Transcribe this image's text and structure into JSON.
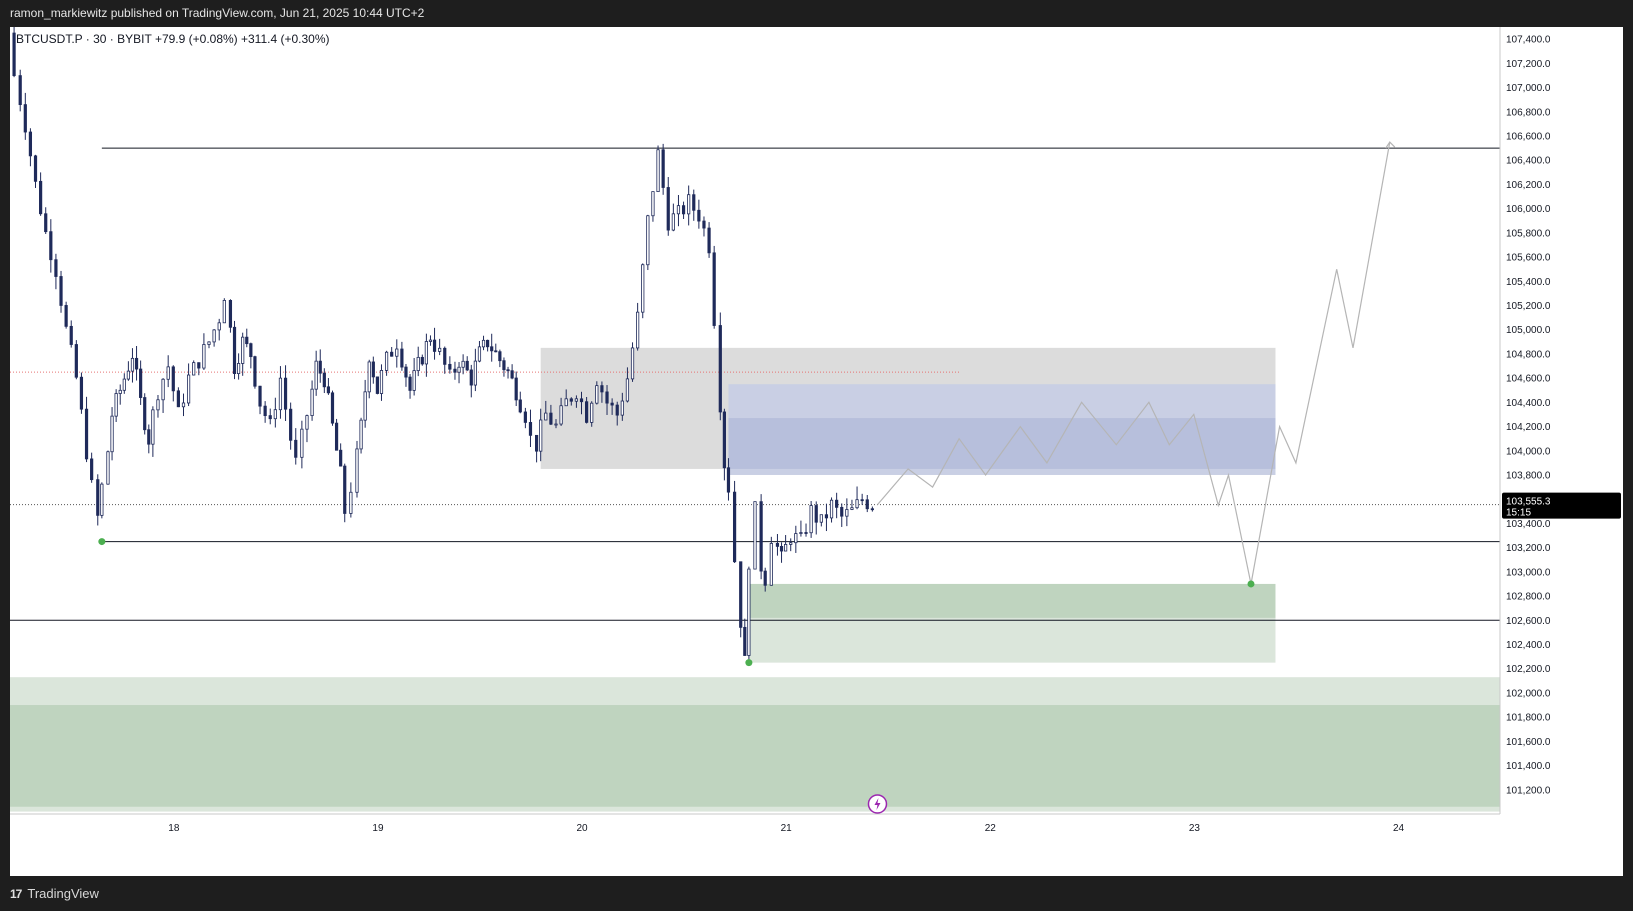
{
  "header": {
    "published_by": "ramon_markiewitz published on TradingView.com, Jun 21, 2025 10:44 UTC+2"
  },
  "legend": {
    "symbol_line": "BTCUSDT.P · 30 · BYBIT",
    "change_1": "+79.9 (+0.08%)",
    "change_2": "+311.4 (+0.30%)"
  },
  "price_label": {
    "price": "103,555.3",
    "countdown": "15:15"
  },
  "footer": {
    "brand": "TradingView"
  },
  "colors": {
    "candle": "#1f2a5a",
    "gray_zone": "#dcdcdc",
    "blue_zone": "#b7bfdc",
    "green_dark": "#bfd4bf",
    "green_light": "#dbe6db",
    "projection": "#b5b5b5",
    "marker": "#4caf50",
    "red_dotted": "#e57373"
  },
  "chart_data": {
    "type": "candlestick",
    "symbol": "BTCUSDT.P",
    "timeframe": "30",
    "exchange": "BYBIT",
    "x_ticks": [
      "18",
      "19",
      "20",
      "21",
      "22",
      "23",
      "24"
    ],
    "x_range_days": [
      17.2,
      24.5
    ],
    "y_range": [
      101000,
      107500
    ],
    "y_ticks": [
      101200,
      101400,
      101600,
      101800,
      102000,
      102200,
      102400,
      102600,
      102800,
      103000,
      103200,
      103400,
      103600,
      103800,
      104000,
      104200,
      104400,
      104600,
      104800,
      105000,
      105200,
      105400,
      105600,
      105800,
      106000,
      106200,
      106400,
      106600,
      106800,
      107000,
      107200,
      107400
    ],
    "current_price": 103555.3,
    "price_path": [
      [
        17.22,
        107450
      ],
      [
        17.25,
        107100
      ],
      [
        17.3,
        106700
      ],
      [
        17.35,
        106200
      ],
      [
        17.4,
        105800
      ],
      [
        17.45,
        105500
      ],
      [
        17.5,
        105000
      ],
      [
        17.55,
        104600
      ],
      [
        17.6,
        104000
      ],
      [
        17.63,
        103700
      ],
      [
        17.65,
        103450
      ],
      [
        17.68,
        103700
      ],
      [
        17.72,
        104300
      ],
      [
        17.78,
        104600
      ],
      [
        17.82,
        104800
      ],
      [
        17.86,
        104400
      ],
      [
        17.9,
        104100
      ],
      [
        17.95,
        104500
      ],
      [
        18.0,
        104700
      ],
      [
        18.05,
        104300
      ],
      [
        18.1,
        104600
      ],
      [
        18.15,
        104750
      ],
      [
        18.2,
        104900
      ],
      [
        18.25,
        105100
      ],
      [
        18.28,
        105300
      ],
      [
        18.32,
        104700
      ],
      [
        18.36,
        104900
      ],
      [
        18.4,
        104800
      ],
      [
        18.45,
        104400
      ],
      [
        18.5,
        104200
      ],
      [
        18.55,
        104600
      ],
      [
        18.6,
        104100
      ],
      [
        18.63,
        103900
      ],
      [
        18.68,
        104300
      ],
      [
        18.72,
        104700
      ],
      [
        18.76,
        104600
      ],
      [
        18.8,
        104200
      ],
      [
        18.84,
        103800
      ],
      [
        18.87,
        103500
      ],
      [
        18.9,
        103700
      ],
      [
        18.94,
        104200
      ],
      [
        18.98,
        104800
      ],
      [
        19.02,
        104500
      ],
      [
        19.07,
        104750
      ],
      [
        19.12,
        104900
      ],
      [
        19.18,
        104500
      ],
      [
        19.22,
        104700
      ],
      [
        19.28,
        104950
      ],
      [
        19.33,
        104800
      ],
      [
        19.38,
        104600
      ],
      [
        19.42,
        104750
      ],
      [
        19.48,
        104600
      ],
      [
        19.52,
        104800
      ],
      [
        19.56,
        104900
      ],
      [
        19.62,
        104750
      ],
      [
        19.66,
        104650
      ],
      [
        19.7,
        104500
      ],
      [
        19.75,
        104300
      ],
      [
        19.78,
        104100
      ],
      [
        19.8,
        104050
      ],
      [
        19.85,
        104300
      ],
      [
        19.9,
        104200
      ],
      [
        19.95,
        104400
      ],
      [
        20.0,
        104500
      ],
      [
        20.05,
        104300
      ],
      [
        20.1,
        104600
      ],
      [
        20.15,
        104400
      ],
      [
        20.2,
        104300
      ],
      [
        20.25,
        104600
      ],
      [
        20.3,
        105100
      ],
      [
        20.35,
        105900
      ],
      [
        20.4,
        106450
      ],
      [
        20.45,
        105900
      ],
      [
        20.5,
        105950
      ],
      [
        20.55,
        106050
      ],
      [
        20.6,
        105950
      ],
      [
        20.65,
        105700
      ],
      [
        20.68,
        105100
      ],
      [
        20.7,
        104400
      ],
      [
        20.72,
        103900
      ],
      [
        20.75,
        103700
      ],
      [
        20.78,
        103100
      ],
      [
        20.8,
        102600
      ],
      [
        20.82,
        102250
      ],
      [
        20.85,
        103100
      ],
      [
        20.88,
        103500
      ],
      [
        20.9,
        103050
      ],
      [
        20.93,
        102950
      ],
      [
        20.96,
        103300
      ],
      [
        21.0,
        103100
      ],
      [
        21.05,
        103300
      ],
      [
        21.1,
        103250
      ],
      [
        21.15,
        103500
      ],
      [
        21.2,
        103400
      ],
      [
        21.25,
        103550
      ],
      [
        21.3,
        103450
      ],
      [
        21.35,
        103500
      ],
      [
        21.4,
        103600
      ],
      [
        21.45,
        103555
      ]
    ],
    "projection_path": [
      [
        21.45,
        103555
      ],
      [
        21.6,
        103850
      ],
      [
        21.72,
        103700
      ],
      [
        21.85,
        104100
      ],
      [
        21.98,
        103800
      ],
      [
        22.15,
        104200
      ],
      [
        22.28,
        103900
      ],
      [
        22.45,
        104400
      ],
      [
        22.62,
        104050
      ],
      [
        22.78,
        104400
      ],
      [
        22.88,
        104050
      ],
      [
        23.0,
        104300
      ],
      [
        23.12,
        103550
      ],
      [
        23.17,
        103800
      ],
      [
        23.28,
        102900
      ],
      [
        23.42,
        104200
      ],
      [
        23.5,
        103900
      ],
      [
        23.7,
        105500
      ],
      [
        23.78,
        104850
      ],
      [
        23.96,
        106550
      ]
    ],
    "horizontal_levels": [
      106500,
      103250,
      102600
    ],
    "red_dotted_level": 104650,
    "zones": [
      {
        "name": "gray-supply-zone",
        "from_day": 19.8,
        "to_day": 23.4,
        "low": 103850,
        "high": 104850
      },
      {
        "name": "blue-zone-outer",
        "from_day": 20.72,
        "to_day": 23.4,
        "low": 103800,
        "high": 104550
      },
      {
        "name": "blue-zone-inner",
        "from_day": 20.72,
        "to_day": 23.4,
        "low": 103850,
        "high": 104270
      },
      {
        "name": "green-demand-light",
        "from_day": 20.82,
        "to_day": 23.4,
        "low": 102250,
        "high": 102900
      },
      {
        "name": "green-demand-dark",
        "from_day": 20.82,
        "to_day": 23.4,
        "low": 102620,
        "high": 102900
      },
      {
        "name": "green-deep-light",
        "from_day": 17.2,
        "to_day": 24.5,
        "low": 101020,
        "high": 102130
      },
      {
        "name": "green-deep-dark",
        "from_day": 17.2,
        "to_day": 24.5,
        "low": 101060,
        "high": 101900
      }
    ],
    "markers": [
      {
        "day": 17.65,
        "price": 103250
      },
      {
        "day": 20.82,
        "price": 102250
      },
      {
        "day": 23.28,
        "price": 102900
      }
    ]
  }
}
